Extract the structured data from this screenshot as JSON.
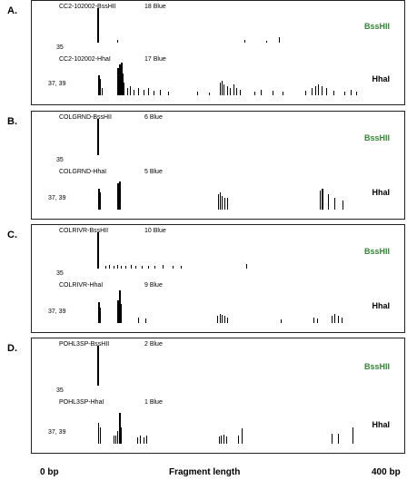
{
  "chart_data": {
    "type": "bar",
    "x_axis": {
      "left_label": "0 bp",
      "title": "Fragment length",
      "right_label": "400 bp",
      "xlim": [
        0,
        400
      ]
    },
    "panels": [
      {
        "letter": "A.",
        "traces": [
          {
            "sample_label": "CC2-102002-BssHII",
            "count_label": "18 Blue",
            "enzyme": "BssHII",
            "enzyme_color": "#2e8b2e",
            "peak_label": "35",
            "peaks": [
              [
                35,
                0.95
              ],
              [
                36,
                0.55
              ],
              [
                37,
                0.25
              ],
              [
                60,
                0.08
              ],
              [
                215,
                0.08
              ],
              [
                242,
                0.06
              ],
              [
                258,
                0.16
              ]
            ]
          },
          {
            "sample_label": "CC2-102002-HhaI",
            "count_label": "17 Blue",
            "enzyme": "HhaI",
            "enzyme_color": "#000000",
            "peak_label": "37, 39",
            "peaks": [
              [
                37,
                0.55
              ],
              [
                39,
                0.45
              ],
              [
                41,
                0.2
              ],
              [
                60,
                0.75
              ],
              [
                62,
                0.85
              ],
              [
                64,
                0.9
              ],
              [
                66,
                0.6
              ],
              [
                68,
                0.35
              ],
              [
                72,
                0.2
              ],
              [
                76,
                0.25
              ],
              [
                80,
                0.15
              ],
              [
                86,
                0.2
              ],
              [
                92,
                0.15
              ],
              [
                98,
                0.2
              ],
              [
                104,
                0.12
              ],
              [
                112,
                0.15
              ],
              [
                122,
                0.1
              ],
              [
                158,
                0.1
              ],
              [
                172,
                0.08
              ],
              [
                186,
                0.35
              ],
              [
                188,
                0.4
              ],
              [
                190,
                0.3
              ],
              [
                194,
                0.25
              ],
              [
                198,
                0.2
              ],
              [
                202,
                0.3
              ],
              [
                206,
                0.2
              ],
              [
                210,
                0.15
              ],
              [
                228,
                0.1
              ],
              [
                236,
                0.15
              ],
              [
                250,
                0.12
              ],
              [
                262,
                0.1
              ],
              [
                290,
                0.12
              ],
              [
                298,
                0.2
              ],
              [
                302,
                0.25
              ],
              [
                306,
                0.3
              ],
              [
                310,
                0.25
              ],
              [
                316,
                0.2
              ],
              [
                324,
                0.12
              ],
              [
                338,
                0.1
              ],
              [
                346,
                0.15
              ],
              [
                352,
                0.1
              ]
            ]
          }
        ]
      },
      {
        "letter": "B.",
        "traces": [
          {
            "sample_label": "COLGRND-BssHII",
            "count_label": "6 Blue",
            "enzyme": "BssHII",
            "enzyme_color": "#2e8b2e",
            "peak_label": "35",
            "peaks": [
              [
                35,
                0.95
              ]
            ]
          },
          {
            "sample_label": "COLGRND-HhaI",
            "count_label": "5 Blue",
            "enzyme": "HhaI",
            "enzyme_color": "#000000",
            "peak_label": "37, 39",
            "peaks": [
              [
                37,
                0.55
              ],
              [
                39,
                0.45
              ],
              [
                60,
                0.7
              ],
              [
                62,
                0.75
              ],
              [
                183,
                0.4
              ],
              [
                186,
                0.45
              ],
              [
                188,
                0.35
              ],
              [
                191,
                0.3
              ],
              [
                194,
                0.3
              ],
              [
                308,
                0.5
              ],
              [
                310,
                0.55
              ],
              [
                318,
                0.4
              ],
              [
                326,
                0.3
              ],
              [
                336,
                0.25
              ]
            ]
          }
        ]
      },
      {
        "letter": "C.",
        "traces": [
          {
            "sample_label": "COLRIVR-BssHII",
            "count_label": "10 Blue",
            "enzyme": "BssHII",
            "enzyme_color": "#2e8b2e",
            "peak_label": "35",
            "peaks": [
              [
                35,
                0.95
              ],
              [
                45,
                0.08
              ],
              [
                50,
                0.1
              ],
              [
                55,
                0.08
              ],
              [
                60,
                0.1
              ],
              [
                64,
                0.08
              ],
              [
                70,
                0.06
              ],
              [
                77,
                0.1
              ],
              [
                82,
                0.08
              ],
              [
                90,
                0.08
              ],
              [
                98,
                0.06
              ],
              [
                106,
                0.08
              ],
              [
                116,
                0.1
              ],
              [
                128,
                0.08
              ],
              [
                138,
                0.06
              ],
              [
                218,
                0.12
              ]
            ]
          },
          {
            "sample_label": "COLRIVR-HhaI",
            "count_label": "9 Blue",
            "enzyme": "HhaI",
            "enzyme_color": "#000000",
            "peak_label": "37, 39",
            "peaks": [
              [
                37,
                0.55
              ],
              [
                39,
                0.4
              ],
              [
                60,
                0.6
              ],
              [
                62,
                0.85
              ],
              [
                64,
                0.5
              ],
              [
                86,
                0.15
              ],
              [
                94,
                0.12
              ],
              [
                182,
                0.2
              ],
              [
                185,
                0.25
              ],
              [
                188,
                0.22
              ],
              [
                191,
                0.2
              ],
              [
                194,
                0.15
              ],
              [
                260,
                0.1
              ],
              [
                300,
                0.15
              ],
              [
                304,
                0.12
              ],
              [
                322,
                0.2
              ],
              [
                326,
                0.25
              ],
              [
                330,
                0.2
              ],
              [
                334,
                0.15
              ]
            ]
          }
        ]
      },
      {
        "letter": "D.",
        "traces": [
          {
            "sample_label": "POHL3SP-BssHII",
            "count_label": "2 Blue",
            "enzyme": "BssHII",
            "enzyme_color": "#2e8b2e",
            "peak_label": "35",
            "peaks": [
              [
                35,
                0.95
              ]
            ]
          },
          {
            "sample_label": "POHL3SP-HhaI",
            "count_label": "1 Blue",
            "enzyme": "HhaI",
            "enzyme_color": "#000000",
            "peak_label": "37, 39",
            "peaks": [
              [
                37,
                0.5
              ],
              [
                39,
                0.4
              ],
              [
                55,
                0.2
              ],
              [
                58,
                0.2
              ],
              [
                60,
                0.3
              ],
              [
                62,
                0.75
              ],
              [
                64,
                0.4
              ],
              [
                84,
                0.15
              ],
              [
                88,
                0.2
              ],
              [
                92,
                0.15
              ],
              [
                96,
                0.2
              ],
              [
                184,
                0.18
              ],
              [
                187,
                0.2
              ],
              [
                190,
                0.22
              ],
              [
                193,
                0.18
              ],
              [
                208,
                0.2
              ],
              [
                212,
                0.38
              ],
              [
                322,
                0.25
              ],
              [
                330,
                0.25
              ],
              [
                348,
                0.4
              ]
            ]
          }
        ]
      }
    ]
  }
}
